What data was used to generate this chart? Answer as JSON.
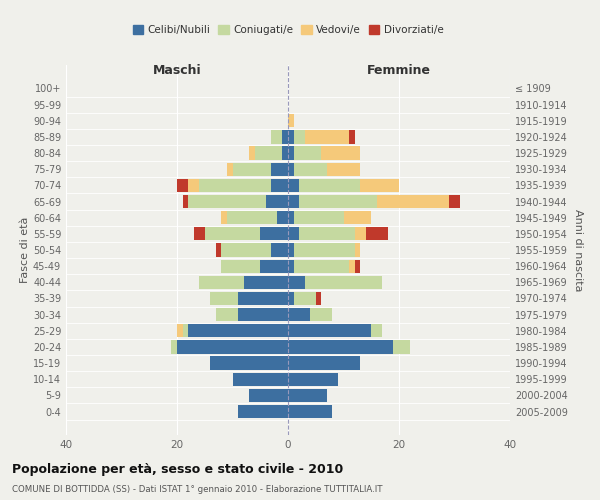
{
  "age_groups": [
    "0-4",
    "5-9",
    "10-14",
    "15-19",
    "20-24",
    "25-29",
    "30-34",
    "35-39",
    "40-44",
    "45-49",
    "50-54",
    "55-59",
    "60-64",
    "65-69",
    "70-74",
    "75-79",
    "80-84",
    "85-89",
    "90-94",
    "95-99",
    "100+"
  ],
  "birth_years": [
    "2005-2009",
    "2000-2004",
    "1995-1999",
    "1990-1994",
    "1985-1989",
    "1980-1984",
    "1975-1979",
    "1970-1974",
    "1965-1969",
    "1960-1964",
    "1955-1959",
    "1950-1954",
    "1945-1949",
    "1940-1944",
    "1935-1939",
    "1930-1934",
    "1925-1929",
    "1920-1924",
    "1915-1919",
    "1910-1914",
    "≤ 1909"
  ],
  "maschi": {
    "celibi": [
      9,
      7,
      10,
      14,
      20,
      18,
      9,
      9,
      8,
      5,
      3,
      5,
      2,
      4,
      3,
      3,
      1,
      1,
      0,
      0,
      0
    ],
    "coniugati": [
      0,
      0,
      0,
      0,
      1,
      1,
      4,
      5,
      8,
      7,
      9,
      10,
      9,
      14,
      13,
      7,
      5,
      2,
      0,
      0,
      0
    ],
    "vedovi": [
      0,
      0,
      0,
      0,
      0,
      1,
      0,
      0,
      0,
      0,
      0,
      0,
      1,
      0,
      2,
      1,
      1,
      0,
      0,
      0,
      0
    ],
    "divorziati": [
      0,
      0,
      0,
      0,
      0,
      0,
      0,
      0,
      0,
      0,
      1,
      2,
      0,
      1,
      2,
      0,
      0,
      0,
      0,
      0,
      0
    ]
  },
  "femmine": {
    "nubili": [
      8,
      7,
      9,
      13,
      19,
      15,
      4,
      1,
      3,
      1,
      1,
      2,
      1,
      2,
      2,
      1,
      1,
      1,
      0,
      0,
      0
    ],
    "coniugate": [
      0,
      0,
      0,
      0,
      3,
      2,
      4,
      4,
      14,
      10,
      11,
      10,
      9,
      14,
      11,
      6,
      5,
      2,
      0,
      0,
      0
    ],
    "vedove": [
      0,
      0,
      0,
      0,
      0,
      0,
      0,
      0,
      0,
      1,
      1,
      2,
      5,
      13,
      7,
      6,
      7,
      8,
      1,
      0,
      0
    ],
    "divorziate": [
      0,
      0,
      0,
      0,
      0,
      0,
      0,
      1,
      0,
      1,
      0,
      4,
      0,
      2,
      0,
      0,
      0,
      1,
      0,
      0,
      0
    ]
  },
  "colors": {
    "celibi": "#3d6fa0",
    "coniugati": "#c5d9a0",
    "vedovi": "#f5c97a",
    "divorziati": "#c0392b"
  },
  "xlim": 40,
  "title": "Popolazione per età, sesso e stato civile - 2010",
  "subtitle": "COMUNE DI BOTTIDDA (SS) - Dati ISTAT 1° gennaio 2010 - Elaborazione TUTTITALIA.IT",
  "ylabel_left": "Fasce di età",
  "ylabel_right": "Anni di nascita",
  "xlabel_maschi": "Maschi",
  "xlabel_femmine": "Femmine",
  "legend_labels": [
    "Celibi/Nubili",
    "Coniugati/e",
    "Vedovi/e",
    "Divorziati/e"
  ],
  "bg_color": "#f0f0eb",
  "bar_height": 0.82
}
